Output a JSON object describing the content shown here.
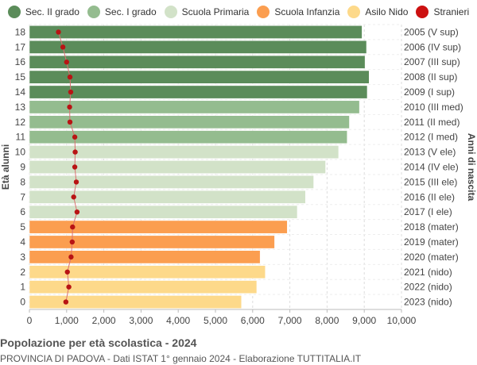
{
  "chart_data": {
    "type": "bar",
    "orientation": "horizontal",
    "title": "Popolazione per età scolastica - 2024",
    "subtitle": "PROVINCIA DI PADOVA - Dati ISTAT 1° gennaio 2024 - Elaborazione TUTTITALIA.IT",
    "ylabel_left": "Età alunni",
    "ylabel_right": "Anni di nascita",
    "xlim": [
      0,
      10000
    ],
    "xticks": [
      "0",
      "1,000",
      "2,000",
      "3,000",
      "4,000",
      "5,000",
      "6,000",
      "7,000",
      "8,000",
      "9,000",
      "10,000"
    ],
    "legend": [
      {
        "name": "Sec. II grado",
        "color": "#5b8c5a"
      },
      {
        "name": "Sec. I grado",
        "color": "#94bc8f"
      },
      {
        "name": "Scuola Primaria",
        "color": "#d2e2c8"
      },
      {
        "name": "Scuola Infanzia",
        "color": "#fb9e50"
      },
      {
        "name": "Asilo Nido",
        "color": "#fdd98a"
      },
      {
        "name": "Stranieri",
        "color": "#cc1111"
      }
    ],
    "rows": [
      {
        "age": "18",
        "birth": "2005 (V sup)",
        "value": 8940,
        "foreign": 780,
        "group": 0
      },
      {
        "age": "17",
        "birth": "2006 (IV sup)",
        "value": 9060,
        "foreign": 900,
        "group": 0
      },
      {
        "age": "16",
        "birth": "2007 (III sup)",
        "value": 9020,
        "foreign": 1000,
        "group": 0
      },
      {
        "age": "15",
        "birth": "2008 (II sup)",
        "value": 9130,
        "foreign": 1090,
        "group": 0
      },
      {
        "age": "14",
        "birth": "2009 (I sup)",
        "value": 9080,
        "foreign": 1110,
        "group": 0
      },
      {
        "age": "13",
        "birth": "2010 (III med)",
        "value": 8870,
        "foreign": 1080,
        "group": 1
      },
      {
        "age": "12",
        "birth": "2011 (II med)",
        "value": 8600,
        "foreign": 1090,
        "group": 1
      },
      {
        "age": "11",
        "birth": "2012 (I med)",
        "value": 8540,
        "foreign": 1220,
        "group": 1
      },
      {
        "age": "10",
        "birth": "2013 (V ele)",
        "value": 8310,
        "foreign": 1230,
        "group": 2
      },
      {
        "age": "9",
        "birth": "2014 (IV ele)",
        "value": 7960,
        "foreign": 1220,
        "group": 2
      },
      {
        "age": "8",
        "birth": "2015 (III ele)",
        "value": 7640,
        "foreign": 1260,
        "group": 2
      },
      {
        "age": "7",
        "birth": "2016 (II ele)",
        "value": 7420,
        "foreign": 1190,
        "group": 2
      },
      {
        "age": "6",
        "birth": "2017 (I ele)",
        "value": 7200,
        "foreign": 1280,
        "group": 2
      },
      {
        "age": "5",
        "birth": "2018 (mater)",
        "value": 6930,
        "foreign": 1160,
        "group": 3
      },
      {
        "age": "4",
        "birth": "2019 (mater)",
        "value": 6590,
        "foreign": 1150,
        "group": 3
      },
      {
        "age": "3",
        "birth": "2020 (mater)",
        "value": 6200,
        "foreign": 1120,
        "group": 3
      },
      {
        "age": "2",
        "birth": "2021 (nido)",
        "value": 6340,
        "foreign": 1020,
        "group": 4
      },
      {
        "age": "1",
        "birth": "2022 (nido)",
        "value": 6110,
        "foreign": 1060,
        "group": 4
      },
      {
        "age": "0",
        "birth": "2023 (nido)",
        "value": 5700,
        "foreign": 980,
        "group": 4
      }
    ]
  }
}
